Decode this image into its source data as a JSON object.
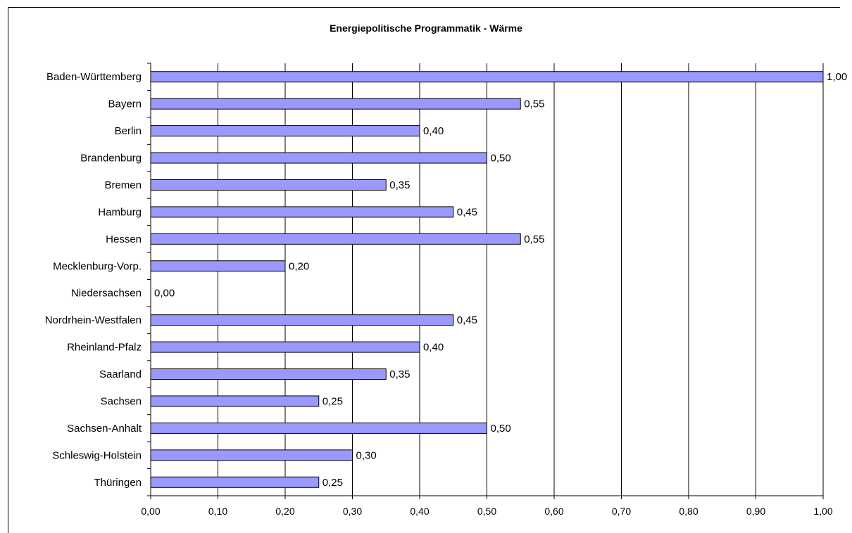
{
  "chart_data": {
    "type": "bar",
    "orientation": "horizontal",
    "title": "Energiepolitische Programmatik - Wärme",
    "xlabel": "",
    "ylabel": "",
    "xlim": [
      0,
      1
    ],
    "x_ticks": [
      "0,00",
      "0,10",
      "0,20",
      "0,30",
      "0,40",
      "0,50",
      "0,60",
      "0,70",
      "0,80",
      "0,90",
      "1,00"
    ],
    "grid": "vertical",
    "legend": "none",
    "bar_color": "#9999ff",
    "categories": [
      "Baden-Württemberg",
      "Bayern",
      "Berlin",
      "Brandenburg",
      "Bremen",
      "Hamburg",
      "Hessen",
      "Mecklenburg-Vorp.",
      "Niedersachsen",
      "Nordrhein-Westfalen",
      "Rheinland-Pfalz",
      "Saarland",
      "Sachsen",
      "Sachsen-Anhalt",
      "Schleswig-Holstein",
      "Thüringen"
    ],
    "values": [
      1.0,
      0.55,
      0.4,
      0.5,
      0.35,
      0.45,
      0.55,
      0.2,
      0.0,
      0.45,
      0.4,
      0.35,
      0.25,
      0.5,
      0.3,
      0.25
    ],
    "value_labels": [
      "1,00",
      "0,55",
      "0,40",
      "0,50",
      "0,35",
      "0,45",
      "0,55",
      "0,20",
      "0,00",
      "0,45",
      "0,40",
      "0,35",
      "0,25",
      "0,50",
      "0,30",
      "0,25"
    ]
  }
}
